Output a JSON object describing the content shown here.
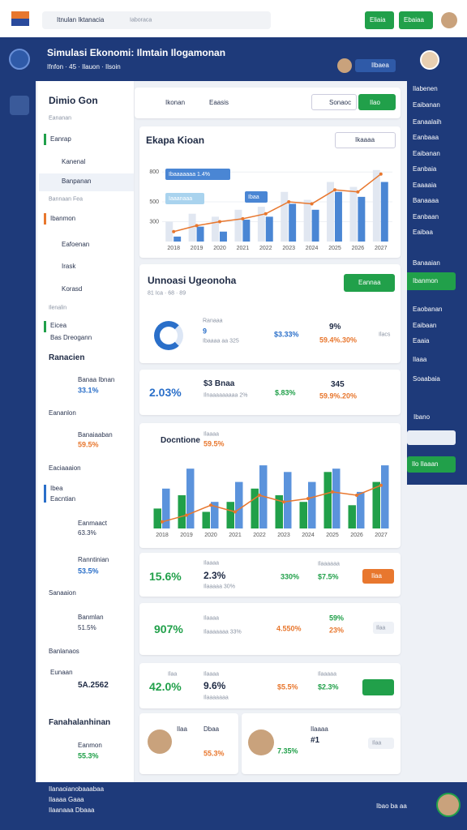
{
  "topbar": {
    "search": "Itnulan Iktanacia",
    "placeholder": "Iaboraca",
    "buttons": [
      "Eliaia",
      "Ebaiaa"
    ]
  },
  "header": {
    "title": "Simulasi Ekonomi: Ilmtain Ilogamonan",
    "subtitle": "Ifnfon · 45 · Ilauon · Ilsoin",
    "badge": "Ilbaea"
  },
  "nav": {
    "title": "Dimio Gon",
    "subtitle": "Eananan",
    "items": [
      "Eanrap",
      "Kanenal",
      "Banpanan",
      "Bannaan Fea",
      "Ibanmon",
      "Eafoenan",
      "Irask",
      "Korasd",
      "Ilenalin",
      "Eicea",
      "Bas Dreogann"
    ],
    "section": "Ranacien",
    "groups": [
      "Eananlon",
      "Eaciaaaion",
      "Ibea",
      "Eacntian",
      "Sanaaion",
      "Banlanaos",
      "Fanahalanhinan"
    ],
    "stats": [
      {
        "label": "Banaa Ibnan",
        "value": "33.1%"
      },
      {
        "label": "Banaiaaban",
        "value": "59.5%"
      },
      {
        "label": "Eanmaact",
        "value": "63.3%"
      },
      {
        "label": "Ranntinian",
        "value": "53.5%"
      },
      {
        "label": "Banmlan",
        "value": "51.5%"
      },
      {
        "label": "Eunaan",
        "value": "5A.2562"
      },
      {
        "label": "Eanmon",
        "value": "55.3%"
      }
    ]
  },
  "toolbar": {
    "tabs": [
      "Ikonan",
      "Eaasis"
    ],
    "search": "Sonaoc",
    "button": "Ilao"
  },
  "chart1": {
    "title": "Ekapa Kioan",
    "search": "Ikaaaa",
    "annotations": [
      "Ibaaaaaaa 1.4%",
      "Iaaanaaa",
      "Ibaa"
    ],
    "categories": [
      "2018",
      "2019",
      "2020",
      "2021",
      "2022",
      "2023",
      "2024",
      "2025",
      "2026",
      "2027"
    ],
    "ylim": [
      100,
      900
    ],
    "yticks": [
      300,
      500,
      800
    ],
    "series": [
      {
        "type": "bar",
        "color": "#e1e7f1",
        "values": [
          300,
          380,
          350,
          420,
          450,
          600,
          520,
          700,
          650,
          820
        ]
      },
      {
        "type": "bar",
        "color": "#4a86d4",
        "values": [
          150,
          250,
          200,
          320,
          350,
          480,
          420,
          600,
          550,
          700
        ]
      },
      {
        "type": "line",
        "color": "#e8772e",
        "values": [
          200,
          260,
          300,
          330,
          380,
          500,
          480,
          620,
          600,
          780
        ]
      }
    ]
  },
  "summary": {
    "title": "Unnoasi Ugeonoha",
    "button": "Eannaa",
    "meta": "81 Ica · 68 · 89",
    "texts": [
      "Ranaaa",
      "9",
      "Ibaaaa aa 325",
      "$3.33%",
      "9%",
      "59.4%.30%",
      "Ilacs"
    ]
  },
  "card2": {
    "texts": [
      "2.03%",
      "$3 Bnaa",
      "Ilnaaaaaaaaa 2%",
      "$.83%",
      "345",
      "59.9%.20%"
    ]
  },
  "chart2": {
    "title": "Docntione",
    "subtitle": "Ilaaaa",
    "note": "59.5%",
    "categories": [
      "2018",
      "2019",
      "2020",
      "2021",
      "2022",
      "2023",
      "2024",
      "2025",
      "2026",
      "2027"
    ],
    "ylim": [
      0,
      100
    ],
    "series": [
      {
        "type": "bar",
        "color": "#21a04a",
        "values": [
          30,
          50,
          25,
          40,
          60,
          50,
          40,
          85,
          35,
          70
        ]
      },
      {
        "type": "bar",
        "color": "#5b93dc",
        "values": [
          60,
          90,
          40,
          70,
          95,
          85,
          70,
          90,
          55,
          95
        ]
      },
      {
        "type": "line",
        "color": "#e8772e",
        "values": [
          10,
          20,
          35,
          25,
          50,
          40,
          45,
          55,
          50,
          65
        ]
      }
    ]
  },
  "card3": {
    "texts": [
      "15.6%",
      "Ilaaaa",
      "2.3%",
      "Ilaaaaa 30%",
      "330%",
      "Ilaaaaaa",
      "$7.5%",
      "Ilaa"
    ]
  },
  "card4": {
    "texts": [
      "907%",
      "Ilaaaa",
      "Ilaaaaaaa 33%",
      "4.550%",
      "59%",
      "23%",
      "Ilaa"
    ]
  },
  "card5": {
    "texts": [
      "Ilaa",
      "42.0%",
      "Ilaaaa",
      "9.6%",
      "Ilaaaaaaa",
      "$5.5%",
      "Ilaaaaa",
      "$2.3%"
    ]
  },
  "people": [
    {
      "name": "Ilaa",
      "role": "Dbaa",
      "value": "55.3%"
    },
    {
      "name": "Ilaaaa",
      "role": "#1",
      "value": "7.35%",
      "tag": "Ilaa"
    }
  ],
  "rightpanel": {
    "items": [
      "Ilabenen",
      "Eaibanan",
      "Eanaalaih",
      "Eanbaaa",
      "Eaibanan",
      "Eanbaia",
      "Eaaaaia",
      "Banaaaa",
      "Eanbaan",
      "Eaibaa",
      "Banaaian",
      "Ibanmon",
      "Eaobanan",
      "Eaibaan",
      "Eaaia",
      "Ilaaa",
      "Soaabaia"
    ],
    "label": "Ibano",
    "button": "Ilo Ilaaan"
  },
  "footer": {
    "lines": [
      "Ilanaoianobaaabaa",
      "Ilaaaa Gaaa",
      "Ilaanaaa Dbaaa"
    ],
    "right": "Ibao ba aa"
  }
}
